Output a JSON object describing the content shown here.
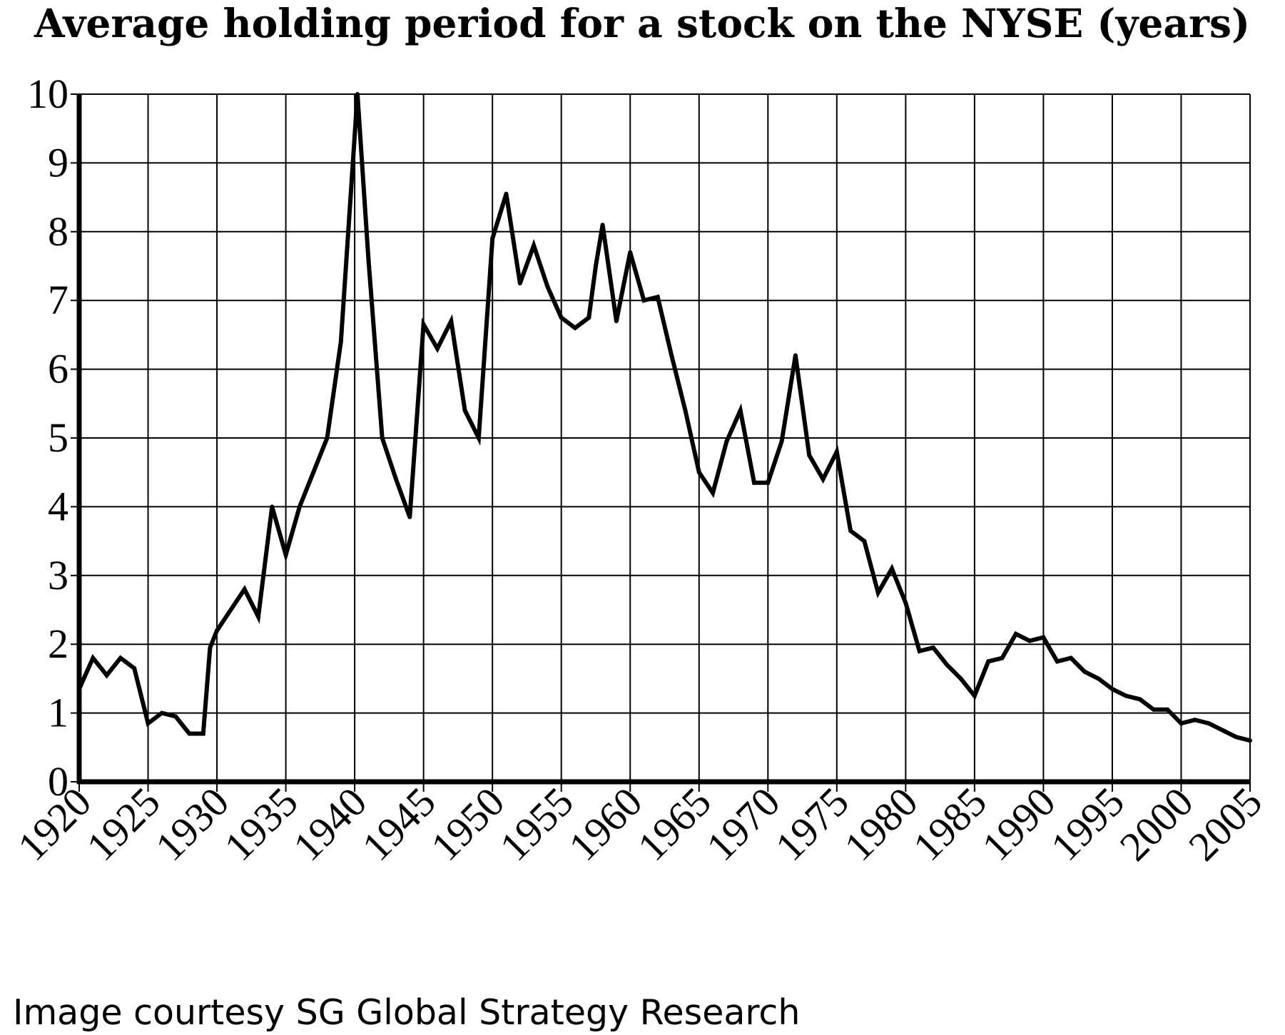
{
  "chart_data": {
    "type": "line",
    "title": "Average holding period for a stock on the NYSE (years)",
    "xlabel": "",
    "ylabel": "",
    "xlim": [
      1920,
      2005
    ],
    "ylim": [
      0,
      10
    ],
    "grid": true,
    "x_ticks": [
      "1920",
      "1925",
      "1930",
      "1935",
      "1940",
      "1945",
      "1950",
      "1955",
      "1960",
      "1965",
      "1970",
      "1975",
      "1980",
      "1985",
      "1990",
      "1995",
      "2000",
      "2005"
    ],
    "y_ticks": [
      "0",
      "1",
      "2",
      "3",
      "4",
      "5",
      "6",
      "7",
      "8",
      "9",
      "10"
    ],
    "series": [
      {
        "x": [
          1920,
          1921,
          1922,
          1923,
          1924,
          1925,
          1926,
          1927,
          1928,
          1929,
          1929.5,
          1930,
          1931,
          1932,
          1933,
          1934,
          1935,
          1936,
          1937,
          1938,
          1939,
          1940.2,
          1941,
          1942,
          1943,
          1944,
          1945,
          1946,
          1947,
          1948,
          1949,
          1950,
          1951,
          1952,
          1953,
          1954,
          1955,
          1956,
          1957,
          1957.5,
          1958,
          1959,
          1960,
          1961,
          1962,
          1963,
          1964,
          1965,
          1966,
          1967,
          1968,
          1969,
          1970,
          1971,
          1972,
          1973,
          1974,
          1975,
          1976,
          1977,
          1978,
          1979,
          1980,
          1981,
          1982,
          1983,
          1984,
          1985,
          1986,
          1987,
          1988,
          1989,
          1990,
          1991,
          1992,
          1993,
          1994,
          1995,
          1996,
          1997,
          1998,
          1999,
          2000,
          2001,
          2002,
          2003,
          2004,
          2005
        ],
        "y": [
          1.35,
          1.8,
          1.55,
          1.8,
          1.65,
          0.85,
          1.0,
          0.95,
          0.7,
          0.7,
          1.95,
          2.2,
          2.5,
          2.8,
          2.4,
          4.0,
          3.3,
          4.0,
          4.5,
          5.0,
          6.4,
          10.0,
          7.6,
          5.0,
          4.4,
          3.85,
          6.65,
          6.3,
          6.7,
          5.4,
          5.0,
          7.9,
          8.55,
          7.25,
          7.8,
          7.2,
          6.75,
          6.6,
          6.75,
          7.5,
          8.1,
          6.7,
          7.7,
          7.0,
          7.05,
          6.2,
          5.4,
          4.5,
          4.2,
          4.95,
          5.4,
          4.35,
          4.35,
          4.95,
          6.2,
          4.75,
          4.4,
          4.8,
          3.65,
          3.5,
          2.75,
          3.1,
          2.6,
          1.9,
          1.95,
          1.7,
          1.5,
          1.25,
          1.75,
          1.8,
          2.15,
          2.05,
          2.1,
          1.75,
          1.8,
          1.6,
          1.5,
          1.35,
          1.25,
          1.2,
          1.05,
          1.05,
          0.85,
          0.9,
          0.85,
          0.75,
          0.65,
          0.6
        ]
      }
    ]
  },
  "credit": "Image courtesy SG Global Strategy Research"
}
